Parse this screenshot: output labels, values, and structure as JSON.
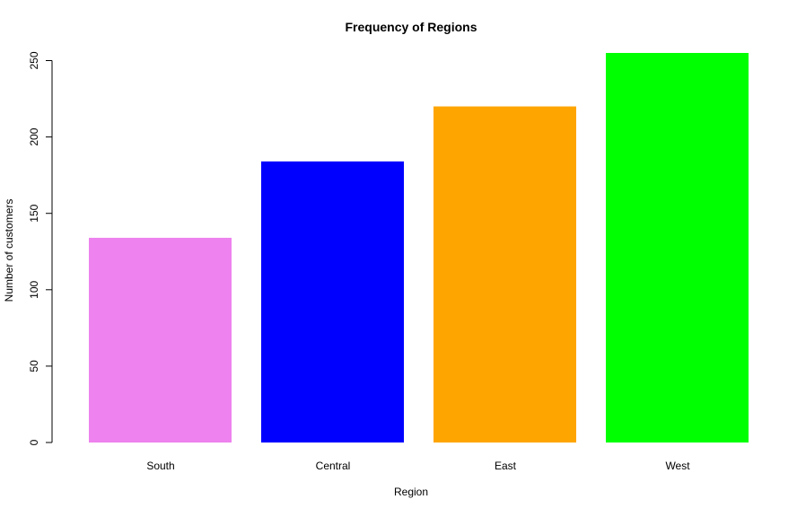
{
  "chart_data": {
    "type": "bar",
    "title": "Frequency of Regions",
    "xlabel": "Region",
    "ylabel": "Number of customers",
    "categories": [
      "South",
      "Central",
      "East",
      "West"
    ],
    "values": [
      134,
      184,
      220,
      255
    ],
    "colors": [
      "#EE82EE",
      "#0000FF",
      "#FFA500",
      "#00FF00"
    ],
    "ylim": [
      0,
      255
    ],
    "yticks": [
      0,
      50,
      100,
      150,
      200,
      250
    ],
    "ytick_labels": [
      "0",
      "50",
      "100",
      "150",
      "200",
      "250"
    ],
    "grid": false,
    "legend": "none"
  }
}
